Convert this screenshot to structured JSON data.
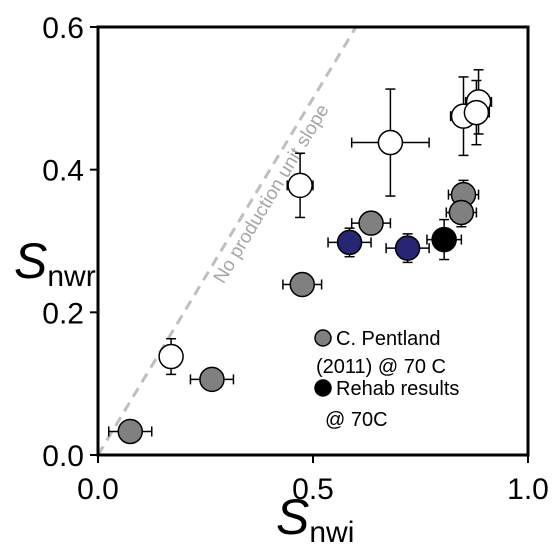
{
  "chart_data": {
    "type": "scatter",
    "xlabel": {
      "main": "S",
      "sub": "nwi"
    },
    "ylabel": {
      "main": "S",
      "sub": "nwr"
    },
    "xlim": [
      0,
      1
    ],
    "ylim": [
      0,
      0.6
    ],
    "x_ticks": [
      "0.0",
      "0.5",
      "1.0"
    ],
    "y_ticks": [
      "0.0",
      "0.2",
      "0.4",
      "0.6"
    ],
    "x_tick_values": [
      0,
      0.5,
      1.0
    ],
    "y_tick_values": [
      0,
      0.2,
      0.4,
      0.6
    ],
    "grid": false,
    "legend_position": "bottom-right",
    "reference_line": {
      "label": "No production unit slope",
      "x": [
        0,
        0.6
      ],
      "y": [
        0,
        0.6
      ],
      "color": "#bfbfbf"
    },
    "series": [
      {
        "legend": "open",
        "color": "#ffffff",
        "points": [
          {
            "x": 0.17,
            "y": 0.138,
            "xerr": 0,
            "yerr": 0.025
          },
          {
            "x": 0.47,
            "y": 0.378,
            "xerr": 0.03,
            "yerr": 0.045
          },
          {
            "x": 0.68,
            "y": 0.438,
            "xerr": 0.09,
            "yerr": 0.075
          },
          {
            "x": 0.85,
            "y": 0.475,
            "xerr": 0.03,
            "yerr": 0.055
          },
          {
            "x": 0.885,
            "y": 0.495,
            "xerr": 0.03,
            "yerr": 0.045
          },
          {
            "x": 0.88,
            "y": 0.48,
            "xerr": 0.03,
            "yerr": 0.045
          }
        ]
      },
      {
        "name": "C. Pentland (2011) @ 70 C",
        "legend_lines": [
          "C. Pentland",
          "(2011) @ 70 C"
        ],
        "color": "#808080",
        "points": [
          {
            "x": 0.075,
            "y": 0.033,
            "xerr": 0.05,
            "yerr": 0
          },
          {
            "x": 0.265,
            "y": 0.106,
            "xerr": 0.05,
            "yerr": 0
          },
          {
            "x": 0.475,
            "y": 0.239,
            "xerr": 0.045,
            "yerr": 0
          },
          {
            "x": 0.635,
            "y": 0.325,
            "xerr": 0.045,
            "yerr": 0
          },
          {
            "x": 0.85,
            "y": 0.365,
            "xerr": 0.035,
            "yerr": 0.02
          },
          {
            "x": 0.845,
            "y": 0.34,
            "xerr": 0.035,
            "yerr": 0.02
          }
        ]
      },
      {
        "legend": "blue",
        "color": "#262673",
        "points": [
          {
            "x": 0.585,
            "y": 0.298,
            "xerr": 0.05,
            "yerr": 0.02
          },
          {
            "x": 0.72,
            "y": 0.29,
            "xerr": 0.05,
            "yerr": 0.02
          }
        ]
      },
      {
        "name": "Rehab results @ 70C",
        "legend_lines": [
          "Rehab results",
          "@ 70C"
        ],
        "color": "#000000",
        "points": [
          {
            "x": 0.805,
            "y": 0.302,
            "xerr": 0.04,
            "yerr": 0.028
          }
        ]
      }
    ]
  }
}
